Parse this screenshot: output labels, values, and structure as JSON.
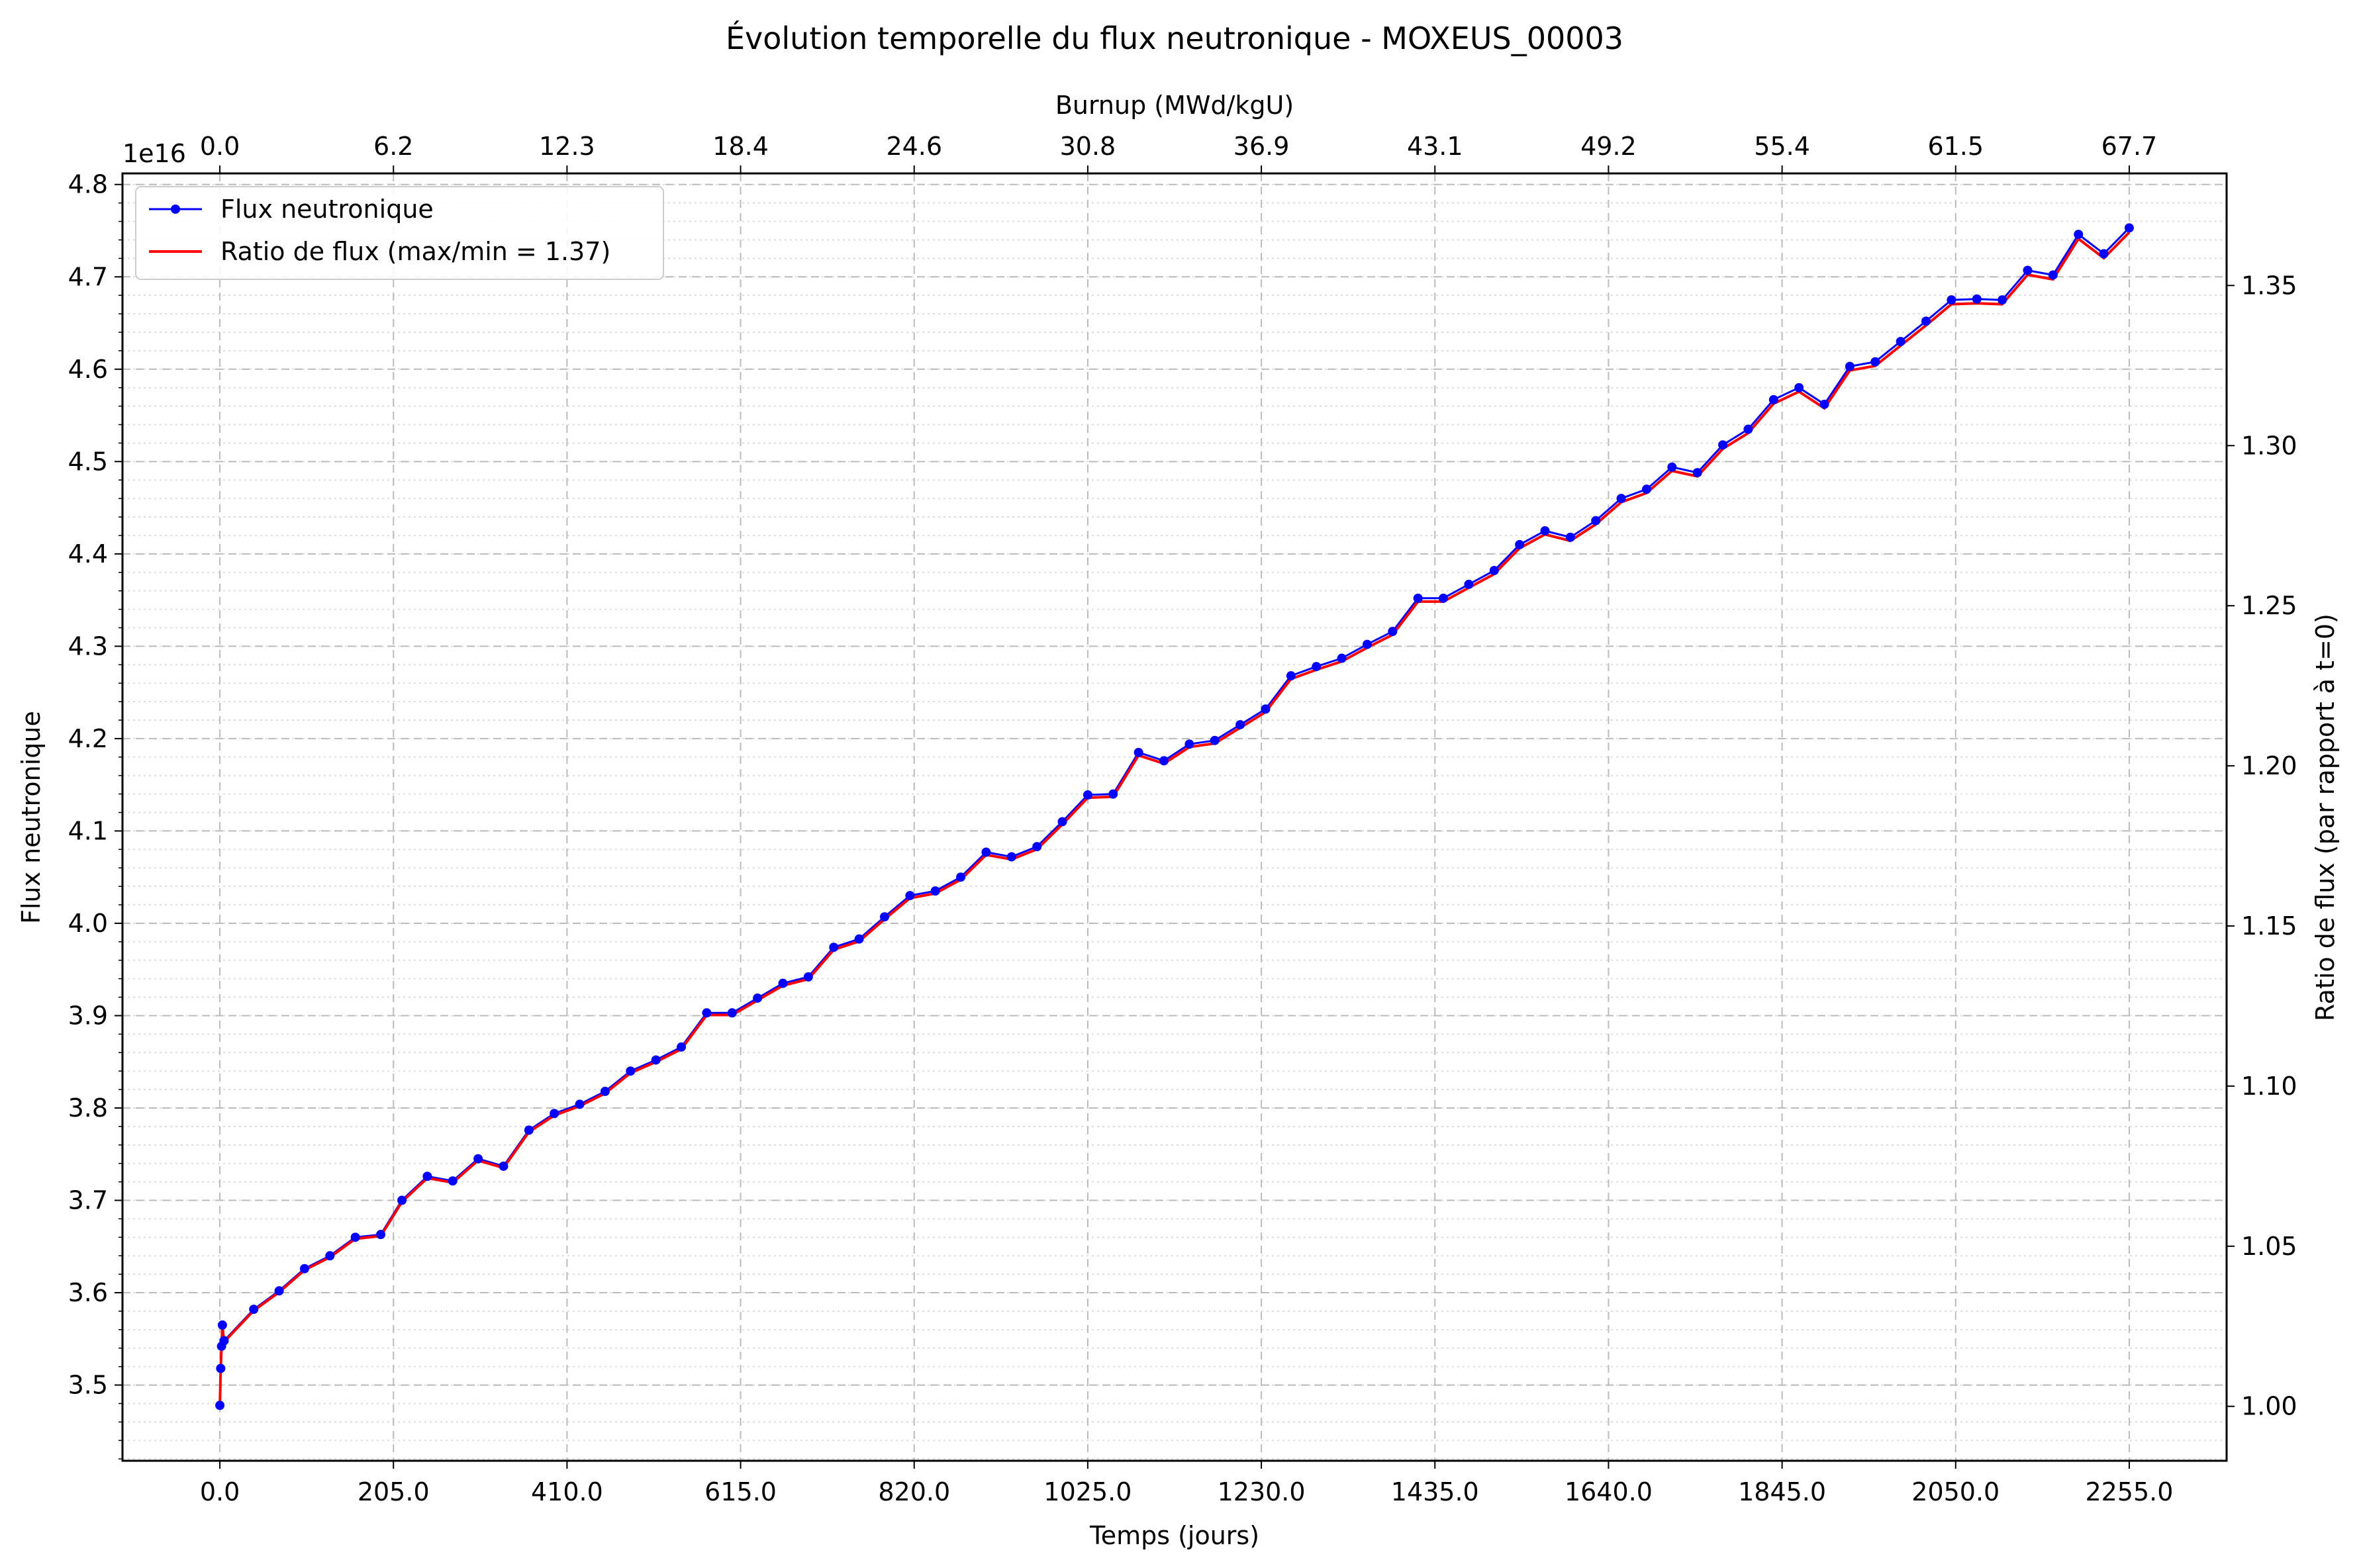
{
  "chart_data": {
    "type": "line",
    "title": "Évolution temporelle du flux neutronique - MOXEUS_00003",
    "xlabel": "Temps (jours)",
    "ylabel": "Flux neutronique",
    "y_offset_label": "1e16",
    "top_xlabel": "Burnup (MWd/kgU)",
    "right_ylabel": "Ratio de flux (par rapport à t=0)",
    "xlim": [
      -115,
      2370
    ],
    "ylim": [
      3.418,
      4.812
    ],
    "right_ylim": [
      0.983,
      1.385
    ],
    "x_ticks": [
      "0.0",
      "205.0",
      "410.0",
      "615.0",
      "820.0",
      "1025.0",
      "1230.0",
      "1435.0",
      "1640.0",
      "1845.0",
      "2050.0",
      "2255.0"
    ],
    "x_tick_values": [
      0,
      205,
      410,
      615,
      820,
      1025,
      1230,
      1435,
      1640,
      1845,
      2050,
      2255
    ],
    "y_ticks": [
      "3.5",
      "3.6",
      "3.7",
      "3.8",
      "3.9",
      "4.0",
      "4.1",
      "4.2",
      "4.3",
      "4.4",
      "4.5",
      "4.6",
      "4.7",
      "4.8"
    ],
    "y_tick_values": [
      3.5,
      3.6,
      3.7,
      3.8,
      3.9,
      4.0,
      4.1,
      4.2,
      4.3,
      4.4,
      4.5,
      4.6,
      4.7,
      4.8
    ],
    "right_ticks": [
      "1.00",
      "1.05",
      "1.10",
      "1.15",
      "1.20",
      "1.25",
      "1.30",
      "1.35"
    ],
    "right_tick_values": [
      1.0,
      1.05,
      1.1,
      1.15,
      1.2,
      1.25,
      1.3,
      1.35
    ],
    "top_ticks": [
      "0.0",
      "6.2",
      "12.3",
      "18.4",
      "24.6",
      "30.8",
      "36.9",
      "43.1",
      "49.2",
      "55.4",
      "61.5",
      "67.7"
    ],
    "grid": true,
    "legend_position": "top-left",
    "colors": {
      "flux": "#0000ff",
      "ratio": "#ff0000"
    },
    "series": [
      {
        "name": "Flux neutronique",
        "x": [
          0,
          1,
          2,
          3,
          5,
          40,
          70,
          100,
          130,
          160,
          190,
          215,
          245,
          275,
          305,
          335,
          365,
          395,
          425,
          455,
          485,
          515,
          545,
          575,
          605,
          635,
          665,
          695,
          725,
          755,
          785,
          815,
          845,
          875,
          905,
          935,
          965,
          995,
          1025,
          1055,
          1085,
          1115,
          1145,
          1175,
          1205,
          1235,
          1265,
          1295,
          1325,
          1355,
          1385,
          1415,
          1445,
          1475,
          1505,
          1535,
          1565,
          1595,
          1625,
          1655,
          1685,
          1715,
          1745,
          1775,
          1805,
          1835,
          1865,
          1895,
          1925,
          1955,
          1985,
          2015,
          2045,
          2075,
          2105,
          2135,
          2165,
          2195,
          2225,
          2255
        ],
        "y": [
          3.478,
          3.518,
          3.542,
          3.565,
          3.548,
          3.582,
          3.602,
          3.626,
          3.64,
          3.66,
          3.663,
          3.7,
          3.726,
          3.721,
          3.745,
          3.737,
          3.776,
          3.794,
          3.804,
          3.818,
          3.84,
          3.852,
          3.866,
          3.903,
          3.903,
          3.919,
          3.935,
          3.942,
          3.974,
          3.983,
          4.007,
          4.03,
          4.035,
          4.05,
          4.077,
          4.072,
          4.083,
          4.11,
          4.139,
          4.14,
          4.185,
          4.176,
          4.194,
          4.198,
          4.215,
          4.232,
          4.268,
          4.278,
          4.287,
          4.302,
          4.316,
          4.352,
          4.352,
          4.367,
          4.382,
          4.41,
          4.425,
          4.418,
          4.436,
          4.46,
          4.47,
          4.494,
          4.488,
          4.518,
          4.535,
          4.567,
          4.58,
          4.562,
          4.603,
          4.608,
          4.63,
          4.652,
          4.675,
          4.676,
          4.675,
          4.707,
          4.702,
          4.746,
          4.725,
          4.753
        ]
      },
      {
        "name": "Ratio de flux (max/min = 1.37)",
        "derived_from": "Flux neutronique"
      }
    ]
  }
}
